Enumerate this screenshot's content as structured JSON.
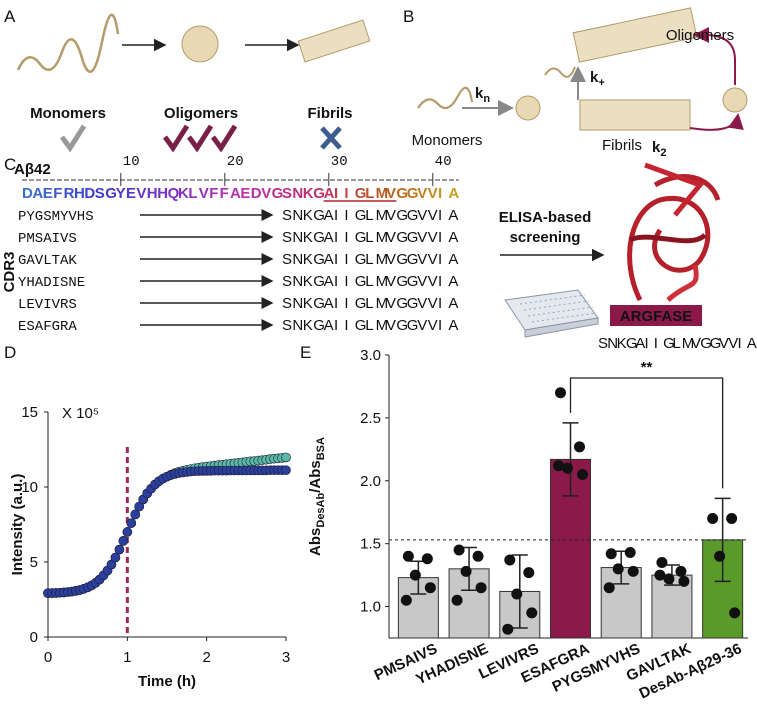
{
  "panel_labels": [
    "A",
    "B",
    "C",
    "D",
    "E"
  ],
  "panel_a": {
    "stages": [
      "Monomers",
      "Oligomers",
      "Fibrils"
    ]
  },
  "panel_b": {
    "monomers": "Monomers",
    "fibrils": "Fibrils",
    "oligomers": "Oligomers",
    "rates": [
      {
        "k": "k",
        "sub": "n"
      },
      {
        "k": "k",
        "sub": "+"
      },
      {
        "k": "k",
        "sub": "2"
      }
    ]
  },
  "panel_c": {
    "peptide": "Aβ42",
    "ruler": [
      10,
      20,
      30,
      40
    ],
    "sequence": "DAEFRHDSGYEVHHQKLVFFAEDVGSNKGAIIGLMVGGVVIA",
    "underlined": "AIIGLMV",
    "cdr3_label": "CDR3",
    "rows": [
      {
        "cdr3": "PYGSMYVHS",
        "epitope": [
          {
            "text": "SNKG",
            "color": "#c4c4c4"
          },
          {
            "text": "AIIGLMVGG",
            "color": "#b5202a"
          },
          {
            "text": "VVIA",
            "color": "#c4c4c4"
          }
        ]
      },
      {
        "cdr3": "PMSAIVS",
        "epitope": [
          {
            "text": "SNKGAIIGLM",
            "color": "#c4c4c4"
          },
          {
            "text": "VGGVVIA",
            "color": "#c07a10"
          }
        ]
      },
      {
        "cdr3": "GAVLTAK",
        "epitope": [
          {
            "text": "SNKGAIIGLM",
            "color": "#c4c4c4"
          },
          {
            "text": "VGGVVIA",
            "color": "#c07a10"
          }
        ]
      },
      {
        "cdr3": "YHADISNE",
        "epitope": [
          {
            "text": "SNKGAIIG",
            "color": "#b8307a"
          },
          {
            "text": "LMVGGVVIA",
            "color": "#c4c4c4"
          }
        ]
      },
      {
        "cdr3": "LEVIVRS",
        "epitope": [
          {
            "text": "SNKGAIIGLM",
            "color": "#c4c4c4"
          },
          {
            "text": "VGGVVIA",
            "color": "#c07a10"
          }
        ]
      },
      {
        "cdr3": "ESAFGRA",
        "epitope": [
          {
            "text": "SNKG",
            "color": "#c4c4c4"
          },
          {
            "text": "AIIGLMV",
            "color": "#b5202a"
          },
          {
            "text": "GGVVIA",
            "color": "#c4c4c4"
          }
        ]
      }
    ],
    "screening": [
      "ELISA-based",
      "screening"
    ],
    "selected": "ARGFASE",
    "selected_epitope": [
      {
        "text": "SNKG",
        "color": "#c4c4c4"
      },
      {
        "text": "AIIGLMV",
        "color": "#b5202a"
      },
      {
        "text": "GGVVIA",
        "color": "#c4c4c4"
      }
    ]
  },
  "chart_data": [
    {
      "type": "scatter",
      "x_label": "Time (h)",
      "y_label": "Intensity (a.u.)",
      "y_scale_label": "X 10⁵",
      "xlim": [
        0,
        3
      ],
      "xticks": [
        0,
        1,
        2,
        3
      ],
      "ylim": [
        0,
        15
      ],
      "yticks": [
        0,
        5,
        10,
        15
      ],
      "vline": {
        "x": 1,
        "color": "#a0285a"
      },
      "x": [
        0,
        0.05,
        0.1,
        0.15,
        0.2,
        0.25,
        0.3,
        0.35,
        0.4,
        0.45,
        0.5,
        0.55,
        0.6,
        0.65,
        0.7,
        0.75,
        0.8,
        0.85,
        0.9,
        0.95,
        1,
        1.05,
        1.1,
        1.15,
        1.2,
        1.25,
        1.3,
        1.35,
        1.4,
        1.45,
        1.5,
        1.55,
        1.6,
        1.65,
        1.7,
        1.75,
        1.8,
        1.85,
        1.9,
        1.95,
        2,
        2.05,
        2.1,
        2.15,
        2.2,
        2.25,
        2.3,
        2.35,
        2.4,
        2.45,
        2.5,
        2.55,
        2.6,
        2.65,
        2.7,
        2.75,
        2.8,
        2.85,
        2.9,
        2.95,
        3
      ],
      "series": [
        {
          "color": "#5cb8a6",
          "values": [
            2.92,
            2.93,
            2.94,
            2.95,
            2.97,
            3.0,
            3.03,
            3.08,
            3.13,
            3.21,
            3.31,
            3.44,
            3.61,
            3.83,
            4.11,
            4.43,
            4.83,
            5.3,
            5.83,
            6.41,
            7.0,
            7.59,
            8.17,
            8.7,
            9.17,
            9.57,
            9.89,
            10.17,
            10.39,
            10.56,
            10.69,
            10.82,
            10.93,
            11.02,
            11.08,
            11.14,
            11.2,
            11.25,
            11.29,
            11.33,
            11.36,
            11.39,
            11.43,
            11.46,
            11.49,
            11.52,
            11.55,
            11.58,
            11.61,
            11.64,
            11.67,
            11.71,
            11.73,
            11.76,
            11.79,
            11.82,
            11.86,
            11.89,
            11.91,
            11.94,
            11.97
          ]
        },
        {
          "color": "#2c3f9e",
          "values": [
            2.92,
            2.93,
            2.94,
            2.95,
            2.97,
            3.0,
            3.03,
            3.08,
            3.13,
            3.21,
            3.31,
            3.44,
            3.61,
            3.83,
            4.11,
            4.43,
            4.83,
            5.3,
            5.83,
            6.41,
            7.0,
            7.59,
            8.17,
            8.7,
            9.17,
            9.57,
            9.89,
            10.17,
            10.39,
            10.56,
            10.69,
            10.79,
            10.87,
            10.93,
            10.97,
            11.0,
            11.03,
            11.05,
            11.06,
            11.07,
            11.08,
            11.08,
            11.09,
            11.09,
            11.09,
            11.09,
            11.1,
            11.1,
            11.1,
            11.1,
            11.1,
            11.11,
            11.11,
            11.11,
            11.11,
            11.11,
            11.12,
            11.12,
            11.12,
            11.12,
            11.12
          ]
        }
      ]
    },
    {
      "type": "bar",
      "y_label": [
        {
          "text": "Abs"
        },
        {
          "text": "DesAb",
          "sub": true
        },
        {
          "text": "/Abs"
        },
        {
          "text": "BSA",
          "sub": true
        }
      ],
      "categories": [
        "PMSAIVS",
        "YHADISNE",
        "LEVIVRS",
        "ESAFGRA",
        "PYGSMYVHS",
        "GAVLTAK",
        "DesAb-Aβ29-36"
      ],
      "values": [
        1.23,
        1.3,
        1.12,
        2.17,
        1.31,
        1.25,
        1.53
      ],
      "errors": [
        0.13,
        0.17,
        0.29,
        0.29,
        0.13,
        0.08,
        0.33
      ],
      "colors": [
        "#c8c8c8",
        "#c8c8c8",
        "#c8c8c8",
        "#8b1a4a",
        "#c8c8c8",
        "#c8c8c8",
        "#5a9a2a"
      ],
      "points": [
        [
          1.4,
          1.38,
          1.25,
          1.15,
          1.05
        ],
        [
          1.45,
          1.4,
          1.28,
          1.15,
          1.05
        ],
        [
          1.37,
          1.27,
          1.1,
          0.95,
          0.82
        ],
        [
          2.7,
          2.27,
          2.1,
          2.05,
          2.12
        ],
        [
          1.42,
          1.43,
          1.3,
          1.28,
          1.15
        ],
        [
          1.35,
          1.28,
          1.22,
          1.2,
          1.25
        ],
        [
          1.7,
          1.7,
          1.4,
          0.95
        ]
      ],
      "ylim": [
        0.75,
        3.0
      ],
      "yticks": [
        {
          "value": 1,
          "label": "1.0"
        },
        {
          "value": 1.5,
          "label": "1.5"
        },
        {
          "value": 2,
          "label": "2.0"
        },
        {
          "value": 2.5,
          "label": "2.5"
        },
        {
          "value": 3,
          "label": "3.0"
        }
      ],
      "hline": 1.53,
      "significance": {
        "label": "**",
        "from": 3,
        "to": 6
      }
    }
  ]
}
